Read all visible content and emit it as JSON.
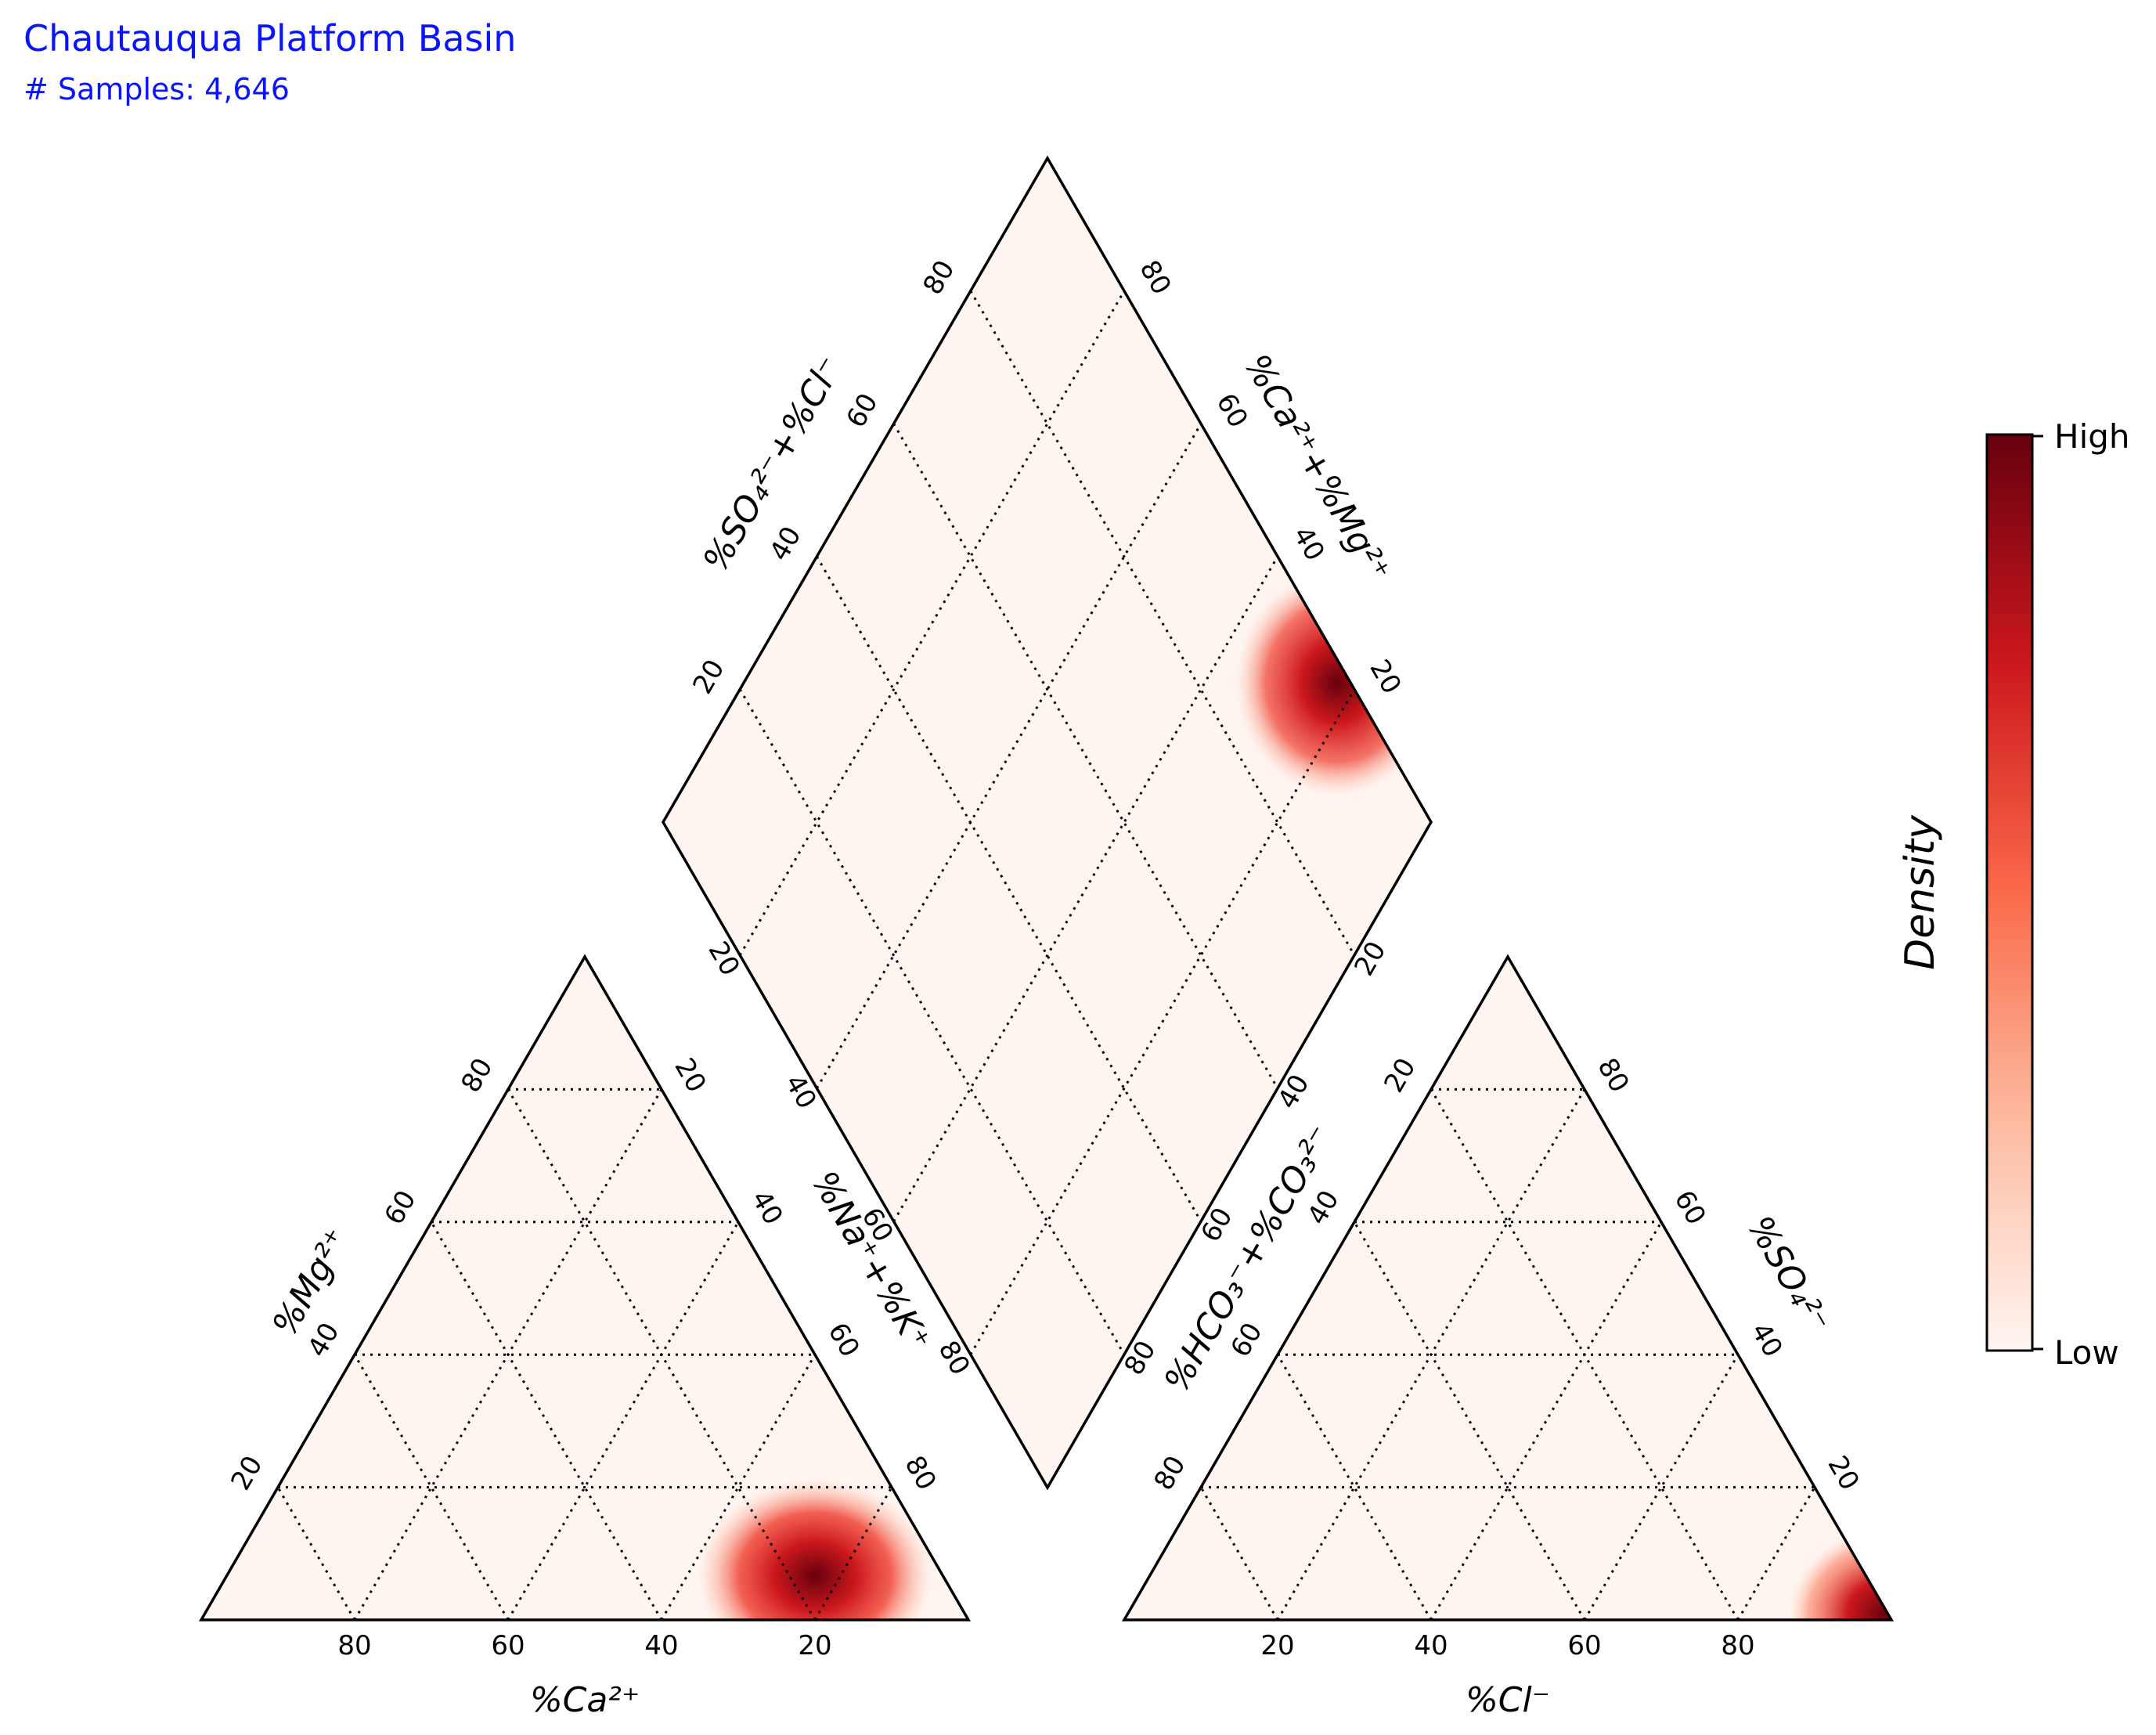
{
  "header": {
    "title": "Chautauqua Platform Basin",
    "subtitle": "# Samples: 4,646"
  },
  "chart_data": {
    "type": "piper",
    "title": "Chautauqua Platform Basin",
    "subtitle": "# Samples: 4,646",
    "colormap": "Reds",
    "colors": {
      "low": "#fff5f0",
      "high": "#67000d",
      "grid": "#000000",
      "title": "#0a14ff"
    },
    "cation_triangle": {
      "xlabel": "%Ca²⁺",
      "left_label": "%Mg²⁺",
      "right_label": "%Na⁺+%K⁺",
      "bottom_ticks": [
        "80",
        "60",
        "40",
        "20"
      ],
      "left_ticks": [
        "20",
        "40",
        "60",
        "80"
      ],
      "right_ticks": [
        "20",
        "40",
        "60",
        "80"
      ],
      "density_peak": {
        "Ca_pct": 20,
        "Mg_pct": 7,
        "NaK_pct": 73
      }
    },
    "anion_triangle": {
      "xlabel": "%Cl⁻",
      "left_label": "%HCO₃⁻+%CO₃²⁻",
      "right_label": "%SO₄²⁻",
      "bottom_ticks": [
        "20",
        "40",
        "60",
        "80"
      ],
      "left_ticks": [
        "20",
        "40",
        "60",
        "80"
      ],
      "right_ticks": [
        "20",
        "40",
        "60",
        "80"
      ],
      "density_peak": {
        "Cl_pct": 97,
        "SO4_pct": 1,
        "HCO3_CO3_pct": 2
      }
    },
    "diamond": {
      "upper_left_label": "%SO₄²⁻+%Cl⁻",
      "upper_right_label": "%Ca²⁺+%Mg²⁺",
      "upper_left_ticks": [
        "20",
        "40",
        "60",
        "80"
      ],
      "upper_right_ticks": [
        "20",
        "40",
        "60",
        "80"
      ],
      "lower_left_ticks": [
        "20",
        "40",
        "60",
        "80"
      ],
      "lower_right_ticks": [
        "20",
        "40",
        "60",
        "80"
      ],
      "density_peak": {
        "SO4_Cl_pct": 98,
        "Ca_Mg_pct": 22
      }
    },
    "colorbar": {
      "label": "Density",
      "high_label": "High",
      "low_label": "Low"
    }
  }
}
